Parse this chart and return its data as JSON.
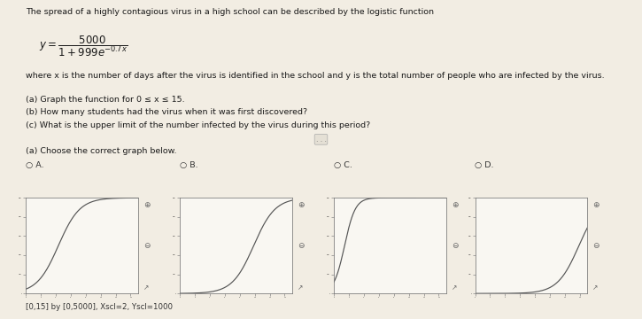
{
  "title_text": "The spread of a highly contagious virus in a high school can be described by the logistic function",
  "description": "where x is the number of days after the virus is identified in the school and y is the total number of people who are infected by the virus.",
  "part_a_text": "(a) Graph the function for 0 ≤ x ≤ 15.",
  "part_b_text": "(b) How many students had the virus when it was first discovered?",
  "part_c_text": "(c) What is the upper limit of the number infected by the virus during this period?",
  "choose_text": "(a) Choose the correct graph below.",
  "window_text": "[0,15] by [0,5000], Xscl=2, Yscl=1000",
  "bg_color": "#f2ede3",
  "graph_bg": "#f9f7f2",
  "curve_color": "#555555",
  "xmin": 0,
  "xmax": 15,
  "ymin": 0,
  "ymax": 5000,
  "L": 5000,
  "k": 0.7,
  "C": 999,
  "curve_A_shift": 5.5,
  "curve_A_k": 0.7,
  "curve_B_shift": 0.0,
  "curve_B_k": 0.7,
  "curve_C_shift": 3.5,
  "curve_C_k": 1.4,
  "curve_D_shift": -4.0,
  "curve_D_k": 0.7
}
